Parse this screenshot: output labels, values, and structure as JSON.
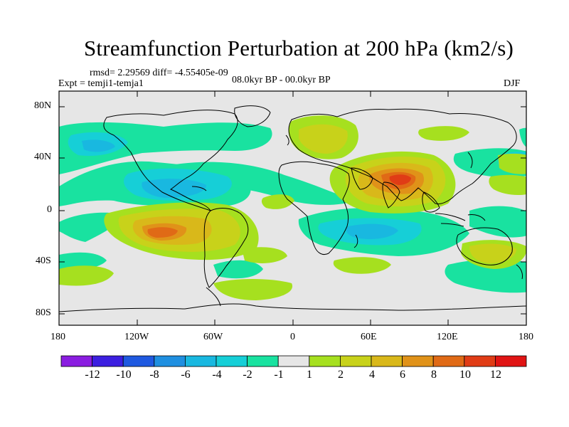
{
  "title": "Streamfunction Perturbation at 200 hPa (km2/s)",
  "stats": {
    "rmsd": "rmsd= 2.29569 diff= -4.55405e-09",
    "experiment": "Expt = temji1-temja1",
    "period": "08.0kyr BP - 00.0kyr BP",
    "season": "DJF"
  },
  "map": {
    "lat_ticks": [
      "80N",
      "40N",
      "0",
      "40S",
      "80S"
    ],
    "lon_ticks": [
      "180",
      "120W",
      "60W",
      "0",
      "60E",
      "120E",
      "180"
    ]
  },
  "colorbar": {
    "labels": [
      "-12",
      "-10",
      "-8",
      "-6",
      "-4",
      "-2",
      "-1",
      "1",
      "2",
      "4",
      "6",
      "8",
      "10",
      "12"
    ],
    "colors": [
      "#8a1de0",
      "#3c1fe0",
      "#1f59e0",
      "#1f8fe0",
      "#19b8e0",
      "#16cfd7",
      "#19e2a0",
      "#e6e6e6",
      "#a6e01f",
      "#c8d21a",
      "#d9b81a",
      "#e09219",
      "#e06a16",
      "#e03c16",
      "#e01414"
    ]
  }
}
